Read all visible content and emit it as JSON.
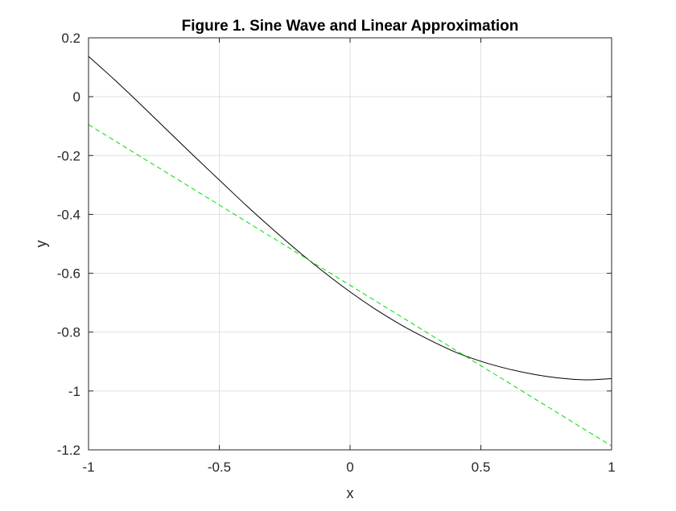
{
  "chart_data": {
    "type": "line",
    "title": "Figure 1. Sine Wave and Linear Approximation",
    "xlabel": "x",
    "ylabel": "y",
    "xlim": [
      -1,
      1
    ],
    "ylim": [
      -1.2,
      0.2
    ],
    "x_ticks": [
      -1,
      -0.5,
      0,
      0.5,
      1
    ],
    "y_ticks": [
      0.2,
      0,
      -0.2,
      -0.4,
      -0.6,
      -0.8,
      -1,
      -1.2
    ],
    "x_tick_labels": [
      "-1",
      "-0.5",
      "0",
      "0.5",
      "1"
    ],
    "y_tick_labels": [
      "0.2",
      "0",
      "-0.2",
      "-0.4",
      "-0.6",
      "-0.8",
      "-1",
      "-1.2"
    ],
    "grid": true,
    "series": [
      {
        "style": "solid",
        "color": "#000000",
        "x": [
          -1,
          -0.9,
          -0.8,
          -0.7,
          -0.6,
          -0.5,
          -0.4,
          -0.3,
          -0.2,
          -0.1,
          0,
          0.1,
          0.2,
          0.3,
          0.4,
          0.5,
          0.6,
          0.7,
          0.8,
          0.9,
          1
        ],
        "y": [
          0.137,
          0.057,
          -0.027,
          -0.113,
          -0.199,
          -0.283,
          -0.367,
          -0.447,
          -0.524,
          -0.596,
          -0.663,
          -0.724,
          -0.778,
          -0.825,
          -0.867,
          -0.899,
          -0.924,
          -0.943,
          -0.956,
          -0.962,
          -0.958
        ]
      },
      {
        "style": "dashed",
        "color": "#00e000",
        "x": [
          -1,
          1
        ],
        "y": [
          -0.095,
          -1.187
        ]
      }
    ]
  }
}
